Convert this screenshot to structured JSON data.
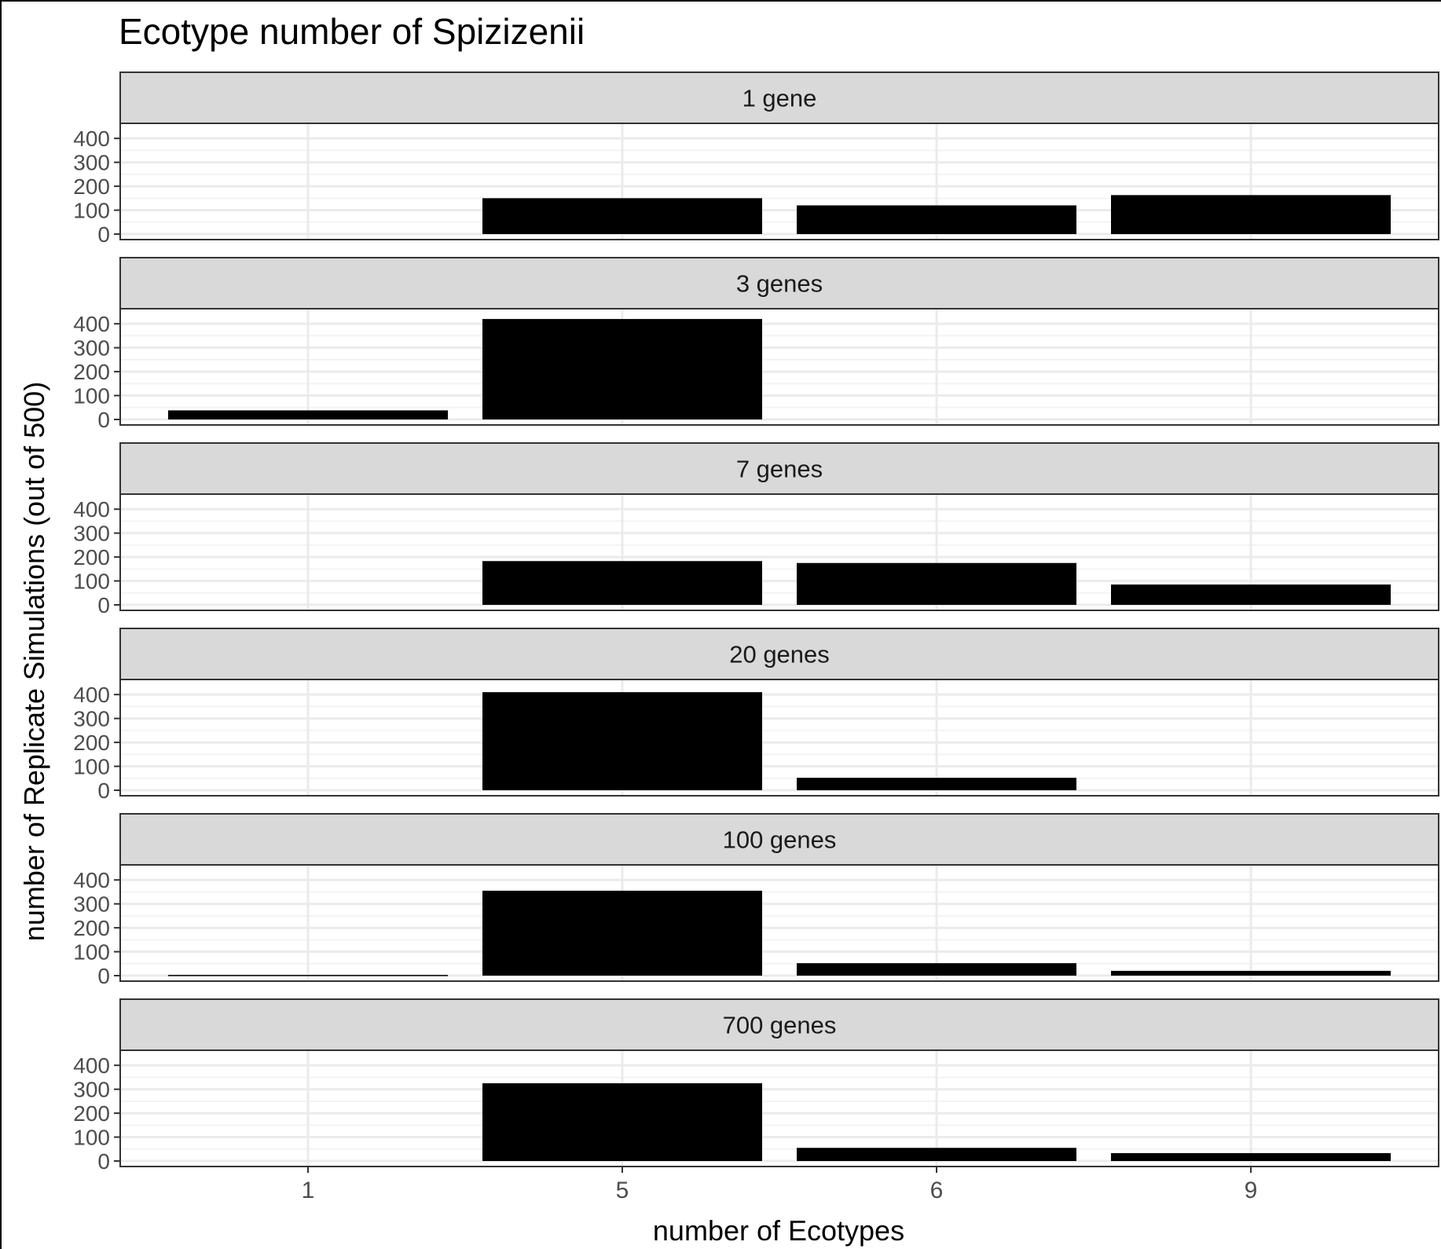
{
  "chart_data": {
    "type": "bar",
    "title": "Ecotype number of Spizizenii",
    "xlabel": "number of Ecotypes",
    "ylabel": "number of Replicate Simulations (out of 500)",
    "categories": [
      "1",
      "5",
      "6",
      "9"
    ],
    "yticks": [
      0,
      100,
      200,
      300,
      400
    ],
    "ylim": [
      0,
      440
    ],
    "grid": true,
    "bar_color": "#000000",
    "strip_color": "#d9d9d9",
    "panels": [
      {
        "label": "1 gene",
        "values": [
          0,
          150,
          120,
          163
        ]
      },
      {
        "label": "3 genes",
        "values": [
          38,
          420,
          0,
          0
        ]
      },
      {
        "label": "7 genes",
        "values": [
          0,
          183,
          175,
          85
        ]
      },
      {
        "label": "20 genes",
        "values": [
          0,
          410,
          52,
          0
        ]
      },
      {
        "label": "100 genes",
        "values": [
          3,
          355,
          52,
          20
        ]
      },
      {
        "label": "700 genes",
        "values": [
          0,
          325,
          55,
          33
        ]
      }
    ]
  }
}
